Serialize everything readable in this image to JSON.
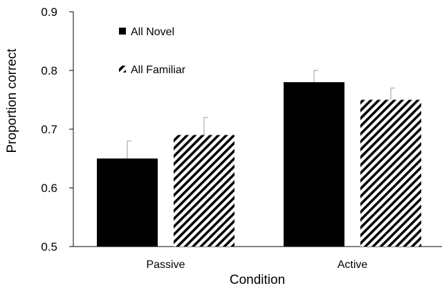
{
  "chart_data": {
    "type": "bar",
    "categories": [
      "Passive",
      "Active"
    ],
    "series": [
      {
        "name": "All Novel",
        "values": [
          0.65,
          0.78
        ],
        "errors": [
          0.03,
          0.02
        ],
        "color": "#000000",
        "pattern": "solid"
      },
      {
        "name": "All Familiar",
        "values": [
          0.69,
          0.75
        ],
        "errors": [
          0.03,
          0.02
        ],
        "color": "#000000",
        "pattern": "diagonal-hatch"
      }
    ],
    "xlabel": "Condition",
    "ylabel": "Proportion correct",
    "ylim": [
      0.5,
      0.9
    ],
    "yticks": [
      "0.5",
      "0.6",
      "0.7",
      "0.8",
      "0.9"
    ],
    "grid": false,
    "legend_position": "top-left",
    "error_bar_color": "#999999"
  }
}
